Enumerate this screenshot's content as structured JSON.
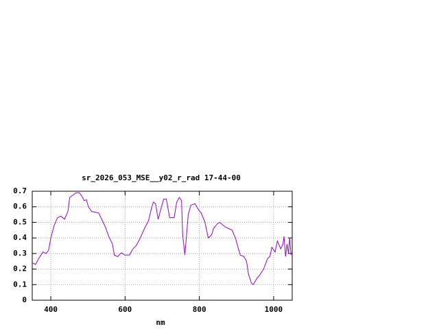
{
  "chart_data": {
    "type": "line",
    "title": "sr_2026_053_MSE__y02_r_rad 17-44-00",
    "x_label": "nm",
    "x": [
      350,
      359,
      368,
      379,
      387,
      394,
      400,
      409,
      418,
      427,
      437,
      446,
      451,
      468,
      477,
      483,
      490,
      496,
      501,
      510,
      529,
      547,
      556,
      566,
      571,
      580,
      590,
      599,
      612,
      621,
      630,
      639,
      652,
      663,
      671,
      676,
      682,
      689,
      698,
      704,
      711,
      720,
      732,
      739,
      746,
      752,
      755,
      761,
      770,
      777,
      788,
      798,
      805,
      815,
      824,
      833,
      838,
      848,
      855,
      870,
      879,
      888,
      897,
      910,
      920,
      927,
      932,
      940,
      945,
      955,
      962,
      973,
      984,
      990,
      995,
      1004,
      1010,
      1019,
      1025,
      1028,
      1032,
      1036,
      1040,
      1043,
      1047
    ],
    "series": [
      {
        "color": "#9400d3",
        "values": [
          0.24,
          0.23,
          0.27,
          0.31,
          0.3,
          0.32,
          0.4,
          0.48,
          0.53,
          0.54,
          0.52,
          0.57,
          0.66,
          0.69,
          0.69,
          0.67,
          0.64,
          0.645,
          0.6,
          0.57,
          0.56,
          0.47,
          0.41,
          0.36,
          0.29,
          0.28,
          0.305,
          0.29,
          0.29,
          0.33,
          0.35,
          0.39,
          0.46,
          0.51,
          0.59,
          0.63,
          0.62,
          0.52,
          0.6,
          0.65,
          0.65,
          0.53,
          0.53,
          0.63,
          0.66,
          0.64,
          0.42,
          0.29,
          0.55,
          0.61,
          0.62,
          0.58,
          0.56,
          0.5,
          0.4,
          0.42,
          0.46,
          0.49,
          0.5,
          0.47,
          0.46,
          0.45,
          0.4,
          0.29,
          0.28,
          0.25,
          0.17,
          0.11,
          0.1,
          0.14,
          0.16,
          0.2,
          0.27,
          0.28,
          0.34,
          0.31,
          0.38,
          0.33,
          0.36,
          0.41,
          0.28,
          0.36,
          0.3,
          0.4,
          0.29
        ]
      }
    ],
    "xlim": [
      350,
      1050
    ],
    "xticks": [
      400,
      600,
      800,
      1000
    ],
    "ylim": [
      0,
      0.7
    ],
    "yticks": [
      0,
      0.1,
      0.2,
      0.3,
      0.4,
      0.5,
      0.6,
      0.7
    ],
    "grid": true
  }
}
